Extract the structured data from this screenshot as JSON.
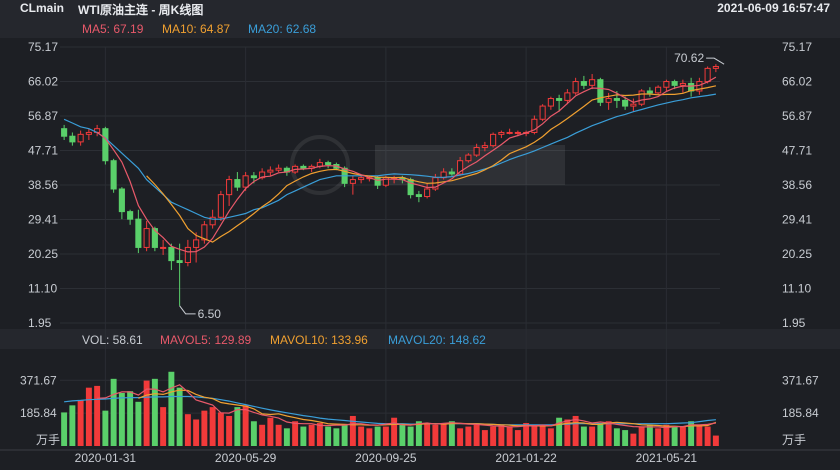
{
  "header": {
    "symbol": "CLmain",
    "name": "WTI原油主连 - 周K线图",
    "datetime": "2021-06-09 16:57:47"
  },
  "legend_price": [
    {
      "label": "MA5: 67.19",
      "color": "#e8596a"
    },
    {
      "label": "MA10: 64.87",
      "color": "#f0a030"
    },
    {
      "label": "MA20: 62.68",
      "color": "#3a9ed8"
    }
  ],
  "legend_volume": [
    {
      "label": "VOL: 58.61",
      "color": "#c8ccd2"
    },
    {
      "label": "MAVOL5: 129.89",
      "color": "#e8596a"
    },
    {
      "label": "MAVOL10: 133.96",
      "color": "#f0a030"
    },
    {
      "label": "MAVOL20: 148.62",
      "color": "#3a9ed8"
    }
  ],
  "colors": {
    "up": "#f23a3a",
    "down": "#5ad06a",
    "ma5": "#e8596a",
    "ma10": "#f0a030",
    "ma20": "#3a9ed8"
  },
  "chart_data": {
    "type": "candlestick",
    "title": "WTI原油主连 - 周K线图",
    "price_axis": {
      "min": 1.95,
      "max": 75.17,
      "ticks": [
        "75.17",
        "66.02",
        "56.87",
        "47.71",
        "38.56",
        "29.41",
        "20.25",
        "11.10",
        "1.95"
      ]
    },
    "volume_axis": {
      "ticks": [
        "371.67",
        "185.84"
      ],
      "unit": "万手"
    },
    "x_labels": [
      {
        "i": 5,
        "label": "2020-01-31"
      },
      {
        "i": 22,
        "label": "2020-05-29"
      },
      {
        "i": 39,
        "label": "2020-09-25"
      },
      {
        "i": 56,
        "label": "2021-01-22"
      },
      {
        "i": 73,
        "label": "2021-05-21"
      }
    ],
    "annotations": [
      {
        "i": 14,
        "value": 6.5,
        "label": "6.50",
        "kind": "low"
      },
      {
        "i": 80,
        "value": 70.62,
        "label": "70.62",
        "kind": "high"
      }
    ],
    "candles": [
      [
        53.5,
        51.5,
        54.5,
        50.5
      ],
      [
        51.5,
        50,
        52.5,
        49
      ],
      [
        50,
        52,
        53,
        49
      ],
      [
        52,
        52.5,
        53.5,
        50.5
      ],
      [
        52.5,
        53.5,
        54.5,
        51.5
      ],
      [
        53.5,
        45,
        54,
        44
      ],
      [
        45,
        37.5,
        45.5,
        36.5
      ],
      [
        37.5,
        31.5,
        38,
        29.5
      ],
      [
        31.5,
        29.5,
        32,
        28
      ],
      [
        29.5,
        22,
        32,
        20.5
      ],
      [
        22,
        27,
        29,
        21
      ],
      [
        27,
        22,
        27.5,
        21
      ],
      [
        22,
        22,
        24,
        20
      ],
      [
        22,
        18.5,
        23,
        16
      ],
      [
        18.5,
        18,
        23,
        6.5
      ],
      [
        18,
        22,
        24,
        17
      ],
      [
        22,
        24,
        26,
        18
      ],
      [
        24,
        28,
        29,
        23
      ],
      [
        28,
        30,
        32,
        27
      ],
      [
        30,
        36,
        37,
        29
      ],
      [
        36,
        40,
        41,
        33
      ],
      [
        40,
        38,
        42,
        37
      ],
      [
        38,
        41,
        42,
        37
      ],
      [
        41,
        40.5,
        42,
        39
      ],
      [
        40.5,
        42,
        43,
        40
      ],
      [
        42,
        42.5,
        43.5,
        41
      ],
      [
        42.5,
        43,
        44,
        42
      ],
      [
        43,
        42,
        43.5,
        41
      ],
      [
        42,
        43.5,
        44,
        41.5
      ],
      [
        43.5,
        43,
        44,
        42.5
      ],
      [
        43,
        43.5,
        44,
        42
      ],
      [
        43.5,
        44.5,
        45.5,
        43
      ],
      [
        44.5,
        44,
        45,
        43
      ],
      [
        44,
        43,
        44.5,
        42.5
      ],
      [
        43,
        39,
        43.5,
        38
      ],
      [
        39,
        40,
        41,
        36
      ],
      [
        40,
        40.5,
        41,
        39
      ],
      [
        40.5,
        40.5,
        41,
        39.5
      ],
      [
        40.5,
        38.5,
        41,
        37.5
      ],
      [
        38.5,
        40.5,
        41,
        38
      ],
      [
        40.5,
        40.5,
        41,
        39
      ],
      [
        40.5,
        40,
        41,
        39
      ],
      [
        40,
        36,
        40.5,
        35
      ],
      [
        36,
        35.5,
        37,
        34
      ],
      [
        35.5,
        37.5,
        39,
        35
      ],
      [
        37.5,
        40.5,
        41.5,
        37
      ],
      [
        40.5,
        42,
        43,
        40
      ],
      [
        42,
        41.5,
        43,
        41
      ],
      [
        41.5,
        45,
        46,
        41
      ],
      [
        45,
        46.5,
        47,
        44.5
      ],
      [
        46.5,
        48.5,
        49.5,
        46
      ],
      [
        48.5,
        49,
        50,
        47.5
      ],
      [
        49,
        52,
        52.5,
        48.5
      ],
      [
        52,
        52.5,
        53,
        51
      ],
      [
        52.5,
        52.5,
        53.5,
        52
      ],
      [
        52.5,
        52.5,
        53,
        51.5
      ],
      [
        52.5,
        52.5,
        53,
        51.5
      ],
      [
        52.5,
        56,
        57,
        52
      ],
      [
        56,
        59.5,
        60,
        55.5
      ],
      [
        59.5,
        61.5,
        62,
        58.5
      ],
      [
        61.5,
        61,
        62.5,
        58
      ],
      [
        61,
        63,
        64,
        60
      ],
      [
        63,
        66,
        67,
        62.5
      ],
      [
        66,
        65,
        67.5,
        64
      ],
      [
        65,
        66.5,
        68,
        64
      ],
      [
        66.5,
        60.5,
        67,
        59.5
      ],
      [
        60.5,
        61.5,
        63,
        58.5
      ],
      [
        61.5,
        61,
        63.5,
        59
      ],
      [
        61,
        59.5,
        62,
        58.5
      ],
      [
        59.5,
        60,
        61.5,
        58
      ],
      [
        60,
        63.5,
        64,
        59.5
      ],
      [
        63.5,
        63,
        64.5,
        62
      ],
      [
        63,
        64.5,
        65,
        62.5
      ],
      [
        64.5,
        66,
        66.5,
        63.5
      ],
      [
        66,
        65,
        66.5,
        64
      ],
      [
        65,
        65.5,
        66.5,
        63
      ],
      [
        65.5,
        63.5,
        67,
        62
      ],
      [
        63.5,
        66,
        67,
        62.5
      ],
      [
        66,
        69.5,
        70,
        65.5
      ],
      [
        69.5,
        70,
        70.62,
        68.5
      ]
    ],
    "volumes": [
      190,
      230,
      260,
      330,
      340,
      200,
      380,
      300,
      310,
      250,
      370,
      380,
      220,
      420,
      330,
      180,
      150,
      200,
      220,
      190,
      170,
      220,
      230,
      140,
      120,
      160,
      120,
      100,
      140,
      110,
      120,
      130,
      110,
      100,
      120,
      170,
      110,
      100,
      110,
      110,
      160,
      120,
      110,
      140,
      130,
      120,
      130,
      140,
      100,
      110,
      120,
      90,
      110,
      120,
      110,
      90,
      130,
      120,
      120,
      100,
      160,
      150,
      170,
      110,
      110,
      130,
      140,
      100,
      90,
      70,
      110,
      120,
      100,
      120,
      110,
      110,
      140,
      120,
      110,
      59
    ],
    "ma5": [
      null,
      null,
      null,
      null,
      52.6,
      50.9,
      47.9,
      44.6,
      39.5,
      33.1,
      29.5,
      26.5,
      24.6,
      22.3,
      21.5,
      20.8,
      20.9,
      22.1,
      24.4,
      28.0,
      31.6,
      34.8,
      37.6,
      39.5,
      40.7,
      40.9,
      41.8,
      42.0,
      42.7,
      42.8,
      43.0,
      43.5,
      43.7,
      43.6,
      42.8,
      42.2,
      41.3,
      40.5,
      39.8,
      40.1,
      40.1,
      40.0,
      39.1,
      38.5,
      37.9,
      38.0,
      39.1,
      40.2,
      42.1,
      43.5,
      44.7,
      46.3,
      47.8,
      49.3,
      51.0,
      51.7,
      52.4,
      53.2,
      54.8,
      56.8,
      58.2,
      60.2,
      62.2,
      63.3,
      64.3,
      64.2,
      63.9,
      62.9,
      61.7,
      60.5,
      61.1,
      61.4,
      62.0,
      63.4,
      64.3,
      64.8,
      64.8,
      65.0,
      65.9,
      67.19
    ],
    "ma10": [
      null,
      null,
      null,
      null,
      null,
      null,
      null,
      null,
      null,
      null,
      41.0,
      38.7,
      36.2,
      33.4,
      30.5,
      27.0,
      25.2,
      24.3,
      23.4,
      24.9,
      26.2,
      27.8,
      29.3,
      31.0,
      32.8,
      34.3,
      36.2,
      38.4,
      39.6,
      40.7,
      41.6,
      42.2,
      42.6,
      42.7,
      42.2,
      41.6,
      41.2,
      40.9,
      40.6,
      40.6,
      40.5,
      40.6,
      39.9,
      39.4,
      39.0,
      39.1,
      39.4,
      39.7,
      40.3,
      41.0,
      41.6,
      42.6,
      43.7,
      45.2,
      46.9,
      47.8,
      48.7,
      49.9,
      51.4,
      53.3,
      54.7,
      56.2,
      57.8,
      59.4,
      61.1,
      61.7,
      62.1,
      62.5,
      62.3,
      62.4,
      62.7,
      62.7,
      62.5,
      62.6,
      62.6,
      62.9,
      63.6,
      64.0,
      64.4,
      64.87
    ],
    "ma20": [
      56,
      55,
      54,
      53.5,
      52.5,
      51,
      49,
      47,
      45,
      43,
      40,
      38,
      36,
      34,
      33,
      32,
      31,
      30,
      29.5,
      29.5,
      30,
      30.5,
      31,
      32,
      32.5,
      33.5,
      34.5,
      36,
      37,
      38,
      39,
      40,
      40.5,
      41,
      41,
      41,
      41,
      41,
      41,
      41.3,
      41.5,
      41.4,
      41.3,
      41.1,
      40.9,
      40.6,
      40.6,
      40.8,
      41.2,
      41.6,
      42.2,
      42.8,
      43.5,
      44.4,
      45.3,
      46.1,
      46.8,
      47.6,
      48.5,
      49.4,
      50.3,
      51.2,
      52.3,
      53.3,
      54.3,
      55.1,
      55.9,
      56.7,
      57.3,
      58,
      58.6,
      59.2,
      59.8,
      60.3,
      60.8,
      61.2,
      61.7,
      62.0,
      62.3,
      62.68
    ],
    "mavol5": [
      null,
      null,
      null,
      null,
      270,
      272,
      292,
      306,
      306,
      288,
      322,
      322,
      306,
      328,
      346,
      306,
      260,
      246,
      232,
      188,
      186,
      206,
      206,
      190,
      176,
      168,
      158,
      136,
      128,
      126,
      126,
      116,
      116,
      118,
      118,
      126,
      126,
      120,
      118,
      124,
      130,
      120,
      118,
      126,
      130,
      124,
      128,
      132,
      128,
      124,
      122,
      118,
      114,
      112,
      108,
      110,
      114,
      114,
      118,
      114,
      130,
      142,
      150,
      142,
      130,
      136,
      130,
      122,
      116,
      110,
      108,
      108,
      108,
      104,
      110,
      110,
      120,
      120,
      122,
      129.89
    ],
    "mavol10": [
      null,
      null,
      null,
      null,
      null,
      null,
      null,
      null,
      null,
      270,
      288,
      296,
      292,
      306,
      316,
      314,
      292,
      276,
      268,
      246,
      238,
      232,
      226,
      210,
      182,
      178,
      182,
      170,
      160,
      150,
      144,
      136,
      126,
      124,
      122,
      120,
      120,
      118,
      118,
      120,
      122,
      122,
      120,
      122,
      126,
      126,
      124,
      126,
      128,
      126,
      126,
      124,
      122,
      120,
      118,
      114,
      116,
      114,
      114,
      114,
      122,
      128,
      132,
      130,
      122,
      122,
      130,
      134,
      130,
      126,
      120,
      118,
      116,
      112,
      112,
      109,
      114,
      114,
      116,
      133.96
    ],
    "mavol20": [
      250,
      255,
      258,
      262,
      264,
      266,
      270,
      272,
      274,
      274,
      276,
      278,
      278,
      280,
      280,
      280,
      278,
      274,
      270,
      262,
      254,
      244,
      234,
      224,
      214,
      204,
      196,
      188,
      180,
      172,
      166,
      158,
      152,
      148,
      144,
      140,
      136,
      132,
      128,
      126,
      126,
      126,
      124,
      124,
      126,
      126,
      126,
      126,
      126,
      126,
      126,
      124,
      122,
      120,
      120,
      120,
      120,
      120,
      120,
      120,
      122,
      124,
      126,
      126,
      126,
      126,
      126,
      126,
      126,
      126,
      126,
      126,
      126,
      126,
      128,
      130,
      132,
      138,
      144,
      148.62
    ]
  }
}
